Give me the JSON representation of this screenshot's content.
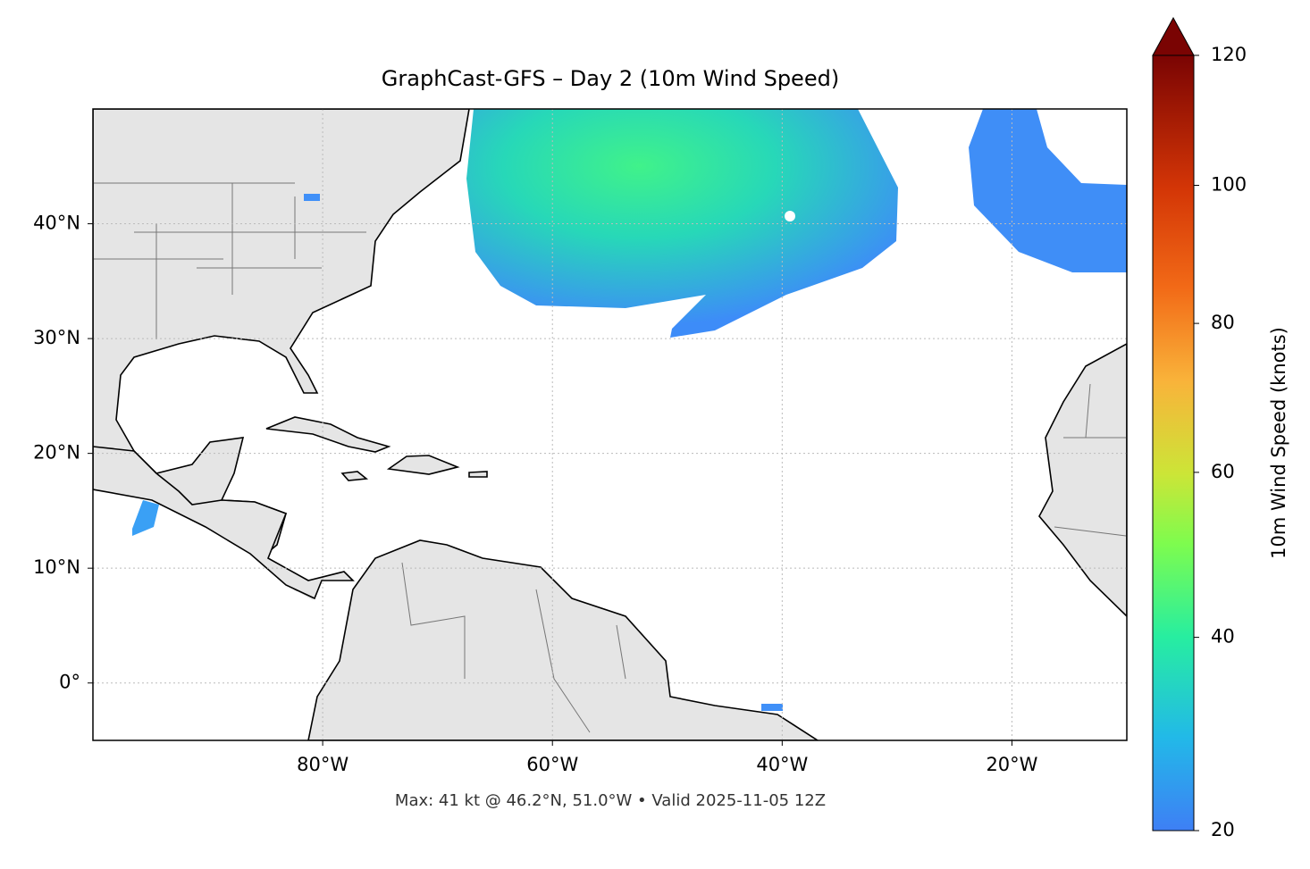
{
  "chart_data": {
    "type": "map",
    "title": "GraphCast-GFS – Day 2 (10m Wind Speed)",
    "subtitle": "Max: 41 kt @ 46.2°N, 51.0°W • Valid 2025-11-05 12Z",
    "xlim": [
      -100,
      -10
    ],
    "ylim": [
      -5,
      50
    ],
    "xticks": [
      {
        "value": -80,
        "label": "80°W"
      },
      {
        "value": -60,
        "label": "60°W"
      },
      {
        "value": -40,
        "label": "40°W"
      },
      {
        "value": -20,
        "label": "20°W"
      }
    ],
    "yticks": [
      {
        "value": 0,
        "label": "0°"
      },
      {
        "value": 10,
        "label": "10°N"
      },
      {
        "value": 20,
        "label": "20°N"
      },
      {
        "value": 30,
        "label": "30°N"
      },
      {
        "value": 40,
        "label": "40°N"
      }
    ],
    "grid": true,
    "colorbar": {
      "label": "10m Wind Speed (knots)",
      "clim": [
        20,
        120
      ],
      "ticks": [
        20,
        40,
        60,
        80,
        100,
        120
      ]
    }
  }
}
